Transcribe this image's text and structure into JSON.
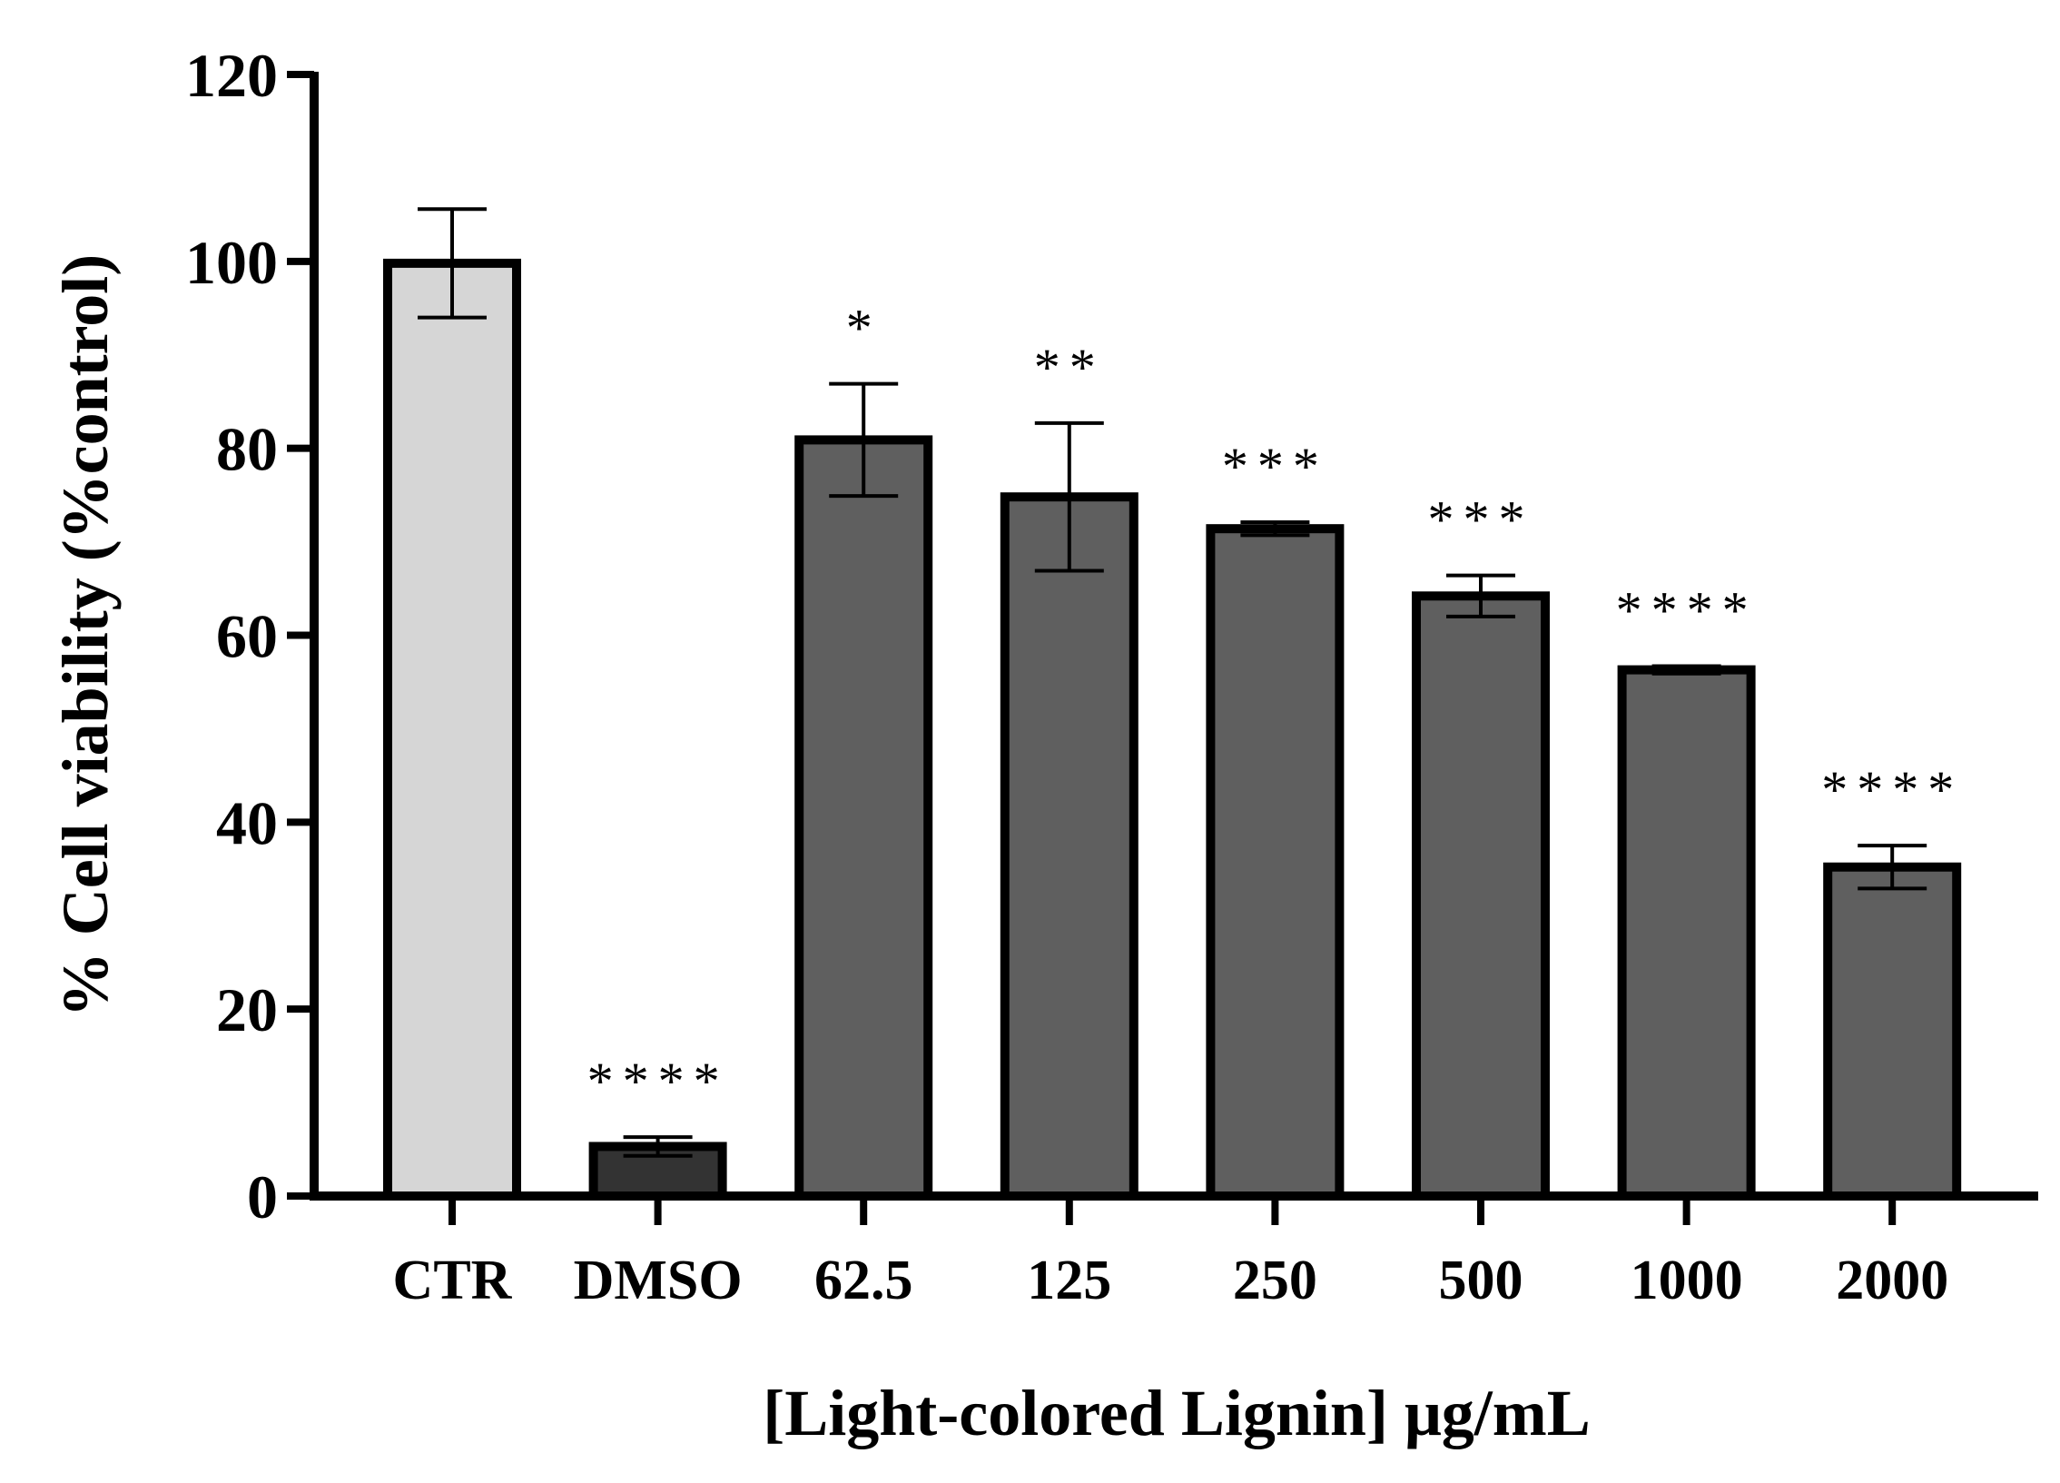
{
  "chart_data": {
    "type": "bar",
    "title": "",
    "xlabel": "[Light-colored Lignin] μg/mL",
    "ylabel": "% Cell viability (%control)",
    "ylim": [
      0,
      120
    ],
    "yticks": [
      0,
      20,
      40,
      60,
      80,
      100,
      120
    ],
    "grid": false,
    "categories": [
      "CTR",
      "DMSO",
      "62.5",
      "125",
      "250",
      "500",
      "1000",
      "2000"
    ],
    "values": [
      99.8,
      5.3,
      80.9,
      74.8,
      71.4,
      64.2,
      56.3,
      35.2
    ],
    "errors": [
      5.8,
      1.0,
      6.0,
      7.9,
      0.7,
      2.2,
      0.4,
      2.3
    ],
    "significance": [
      "",
      "****",
      "*",
      "**",
      "***",
      "***",
      "****",
      "****"
    ],
    "colors": [
      "#d6d6d6",
      "#333333",
      "#5f5f5f",
      "#5f5f5f",
      "#5f5f5f",
      "#5f5f5f",
      "#5f5f5f",
      "#5f5f5f"
    ]
  }
}
